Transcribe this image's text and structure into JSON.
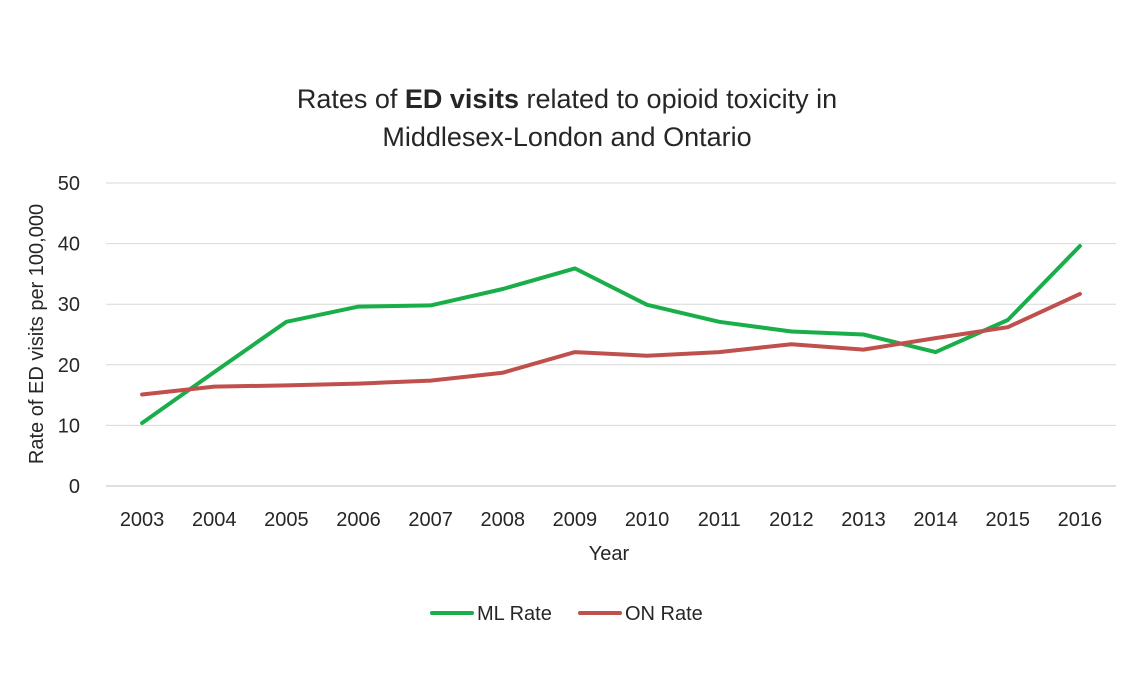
{
  "chart_data": {
    "type": "line",
    "title_parts": [
      "Rates of ",
      "ED visits",
      " related to opioid toxicity in"
    ],
    "title_line2": "Middlesex-London and Ontario",
    "xlabel": "Year",
    "ylabel": "Rate of ED visits per 100,000",
    "ylim": [
      0,
      50
    ],
    "yticks": [
      "0",
      "10",
      "20",
      "30",
      "40",
      "50"
    ],
    "categories": [
      "2003",
      "2004",
      "2005",
      "2006",
      "2007",
      "2008",
      "2009",
      "2010",
      "2011",
      "2012",
      "2013",
      "2014",
      "2015",
      "2016"
    ],
    "series": [
      {
        "name": "ML Rate",
        "color": "#1aae4a",
        "values": [
          10.4,
          18.8,
          27.1,
          29.6,
          29.8,
          32.5,
          35.9,
          29.9,
          27.1,
          25.5,
          25.0,
          22.1,
          27.4,
          39.6
        ]
      },
      {
        "name": "ON Rate",
        "color": "#c0504d",
        "values": [
          15.1,
          16.4,
          16.6,
          16.9,
          17.4,
          18.7,
          22.1,
          21.5,
          22.1,
          23.4,
          22.5,
          24.4,
          26.2,
          31.7
        ]
      }
    ],
    "grid": true,
    "legend_position": "bottom"
  }
}
